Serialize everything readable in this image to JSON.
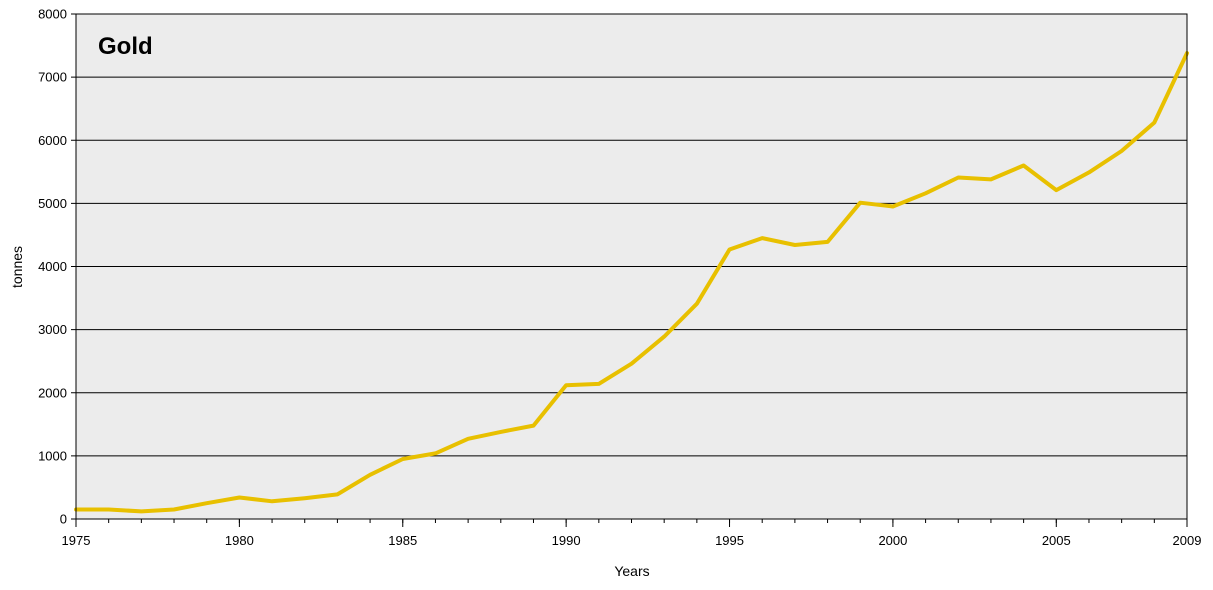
{
  "chart_data": {
    "type": "line",
    "title": "Gold",
    "xlabel": "Years",
    "ylabel": "tonnes",
    "xlim": [
      1975,
      2009
    ],
    "ylim": [
      0,
      8000
    ],
    "x_ticks": [
      "1975",
      "1980",
      "1985",
      "1990",
      "1995",
      "2000",
      "2005",
      "2009"
    ],
    "y_ticks": [
      "0",
      "1000",
      "2000",
      "3000",
      "4000",
      "5000",
      "6000",
      "7000",
      "8000"
    ],
    "grid": "horizontal",
    "legend": "none",
    "colors": {
      "line": "#e8c000",
      "plot_background": "#ececec",
      "gridline": "#000000"
    },
    "series": [
      {
        "x": [
          1975,
          1976,
          1977,
          1978,
          1979,
          1980,
          1981,
          1982,
          1983,
          1984,
          1985,
          1986,
          1987,
          1988,
          1989,
          1990,
          1991,
          1992,
          1993,
          1994,
          1995,
          1996,
          1997,
          1998,
          1999,
          2000,
          2001,
          2002,
          2003,
          2004,
          2005,
          2006,
          2007,
          2008,
          2009
        ],
        "values": [
          150,
          150,
          120,
          150,
          250,
          340,
          280,
          330,
          390,
          700,
          950,
          1040,
          1270,
          1380,
          1480,
          2120,
          2140,
          2460,
          2890,
          3410,
          4270,
          4450,
          4340,
          4390,
          5010,
          4950,
          5160,
          5410,
          5380,
          5600,
          5210,
          5490,
          5830,
          6280,
          7380
        ]
      }
    ]
  }
}
